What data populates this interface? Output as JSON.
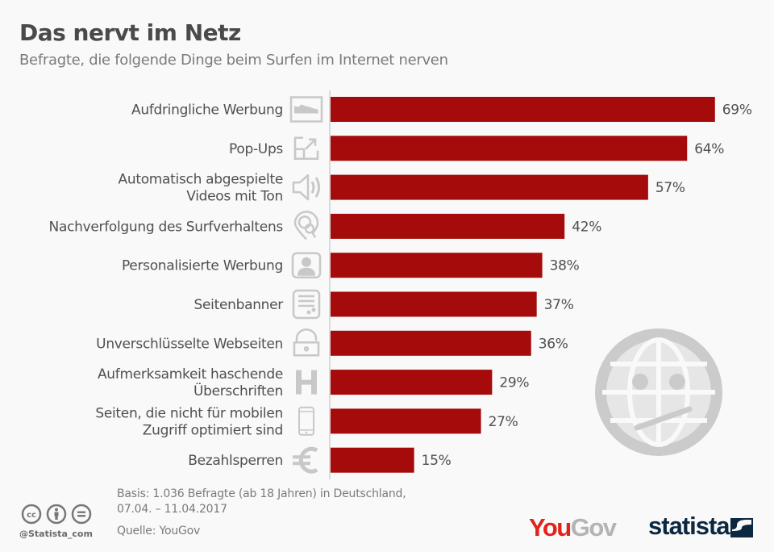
{
  "header": {
    "title": "Das nervt im Netz",
    "subtitle": "Befragte, die folgende Dinge beim Surfen im Internet nerven"
  },
  "colors": {
    "bar": "#a50b0b",
    "icon": "#c8c8c8",
    "text": "#505050",
    "background": "#f9f9f9"
  },
  "chart_data": {
    "type": "bar",
    "orientation": "horizontal",
    "title": "Das nervt im Netz",
    "subtitle": "Befragte, die folgende Dinge beim Surfen im Internet nerven",
    "xlabel": "",
    "ylabel": "",
    "unit": "%",
    "xlim": [
      0,
      70
    ],
    "grid": false,
    "categories": [
      [
        "Aufdringliche Werbung"
      ],
      [
        "Pop-Ups"
      ],
      [
        "Automatisch abgespielte",
        "Videos mit Ton"
      ],
      [
        "Nachverfolgung des Surfverhaltens"
      ],
      [
        "Personalisierte Werbung"
      ],
      [
        "Seitenbanner"
      ],
      [
        "Unverschlüsselte Webseiten"
      ],
      [
        "Aufmerksamkeit haschende",
        "Überschriften"
      ],
      [
        "Seiten, die nicht für mobilen",
        "Zugriff optimiert sind"
      ],
      [
        "Bezahlsperren"
      ]
    ],
    "icons": [
      "ad-chart-icon",
      "popup-expand-icon",
      "speaker-icon",
      "tracking-pin-icon",
      "user-profile-icon",
      "banner-icon",
      "open-lock-icon",
      "headline-h-icon",
      "smartphone-icon",
      "euro-icon"
    ],
    "values": [
      69,
      64,
      57,
      42,
      38,
      37,
      36,
      29,
      27,
      15
    ],
    "value_labels": [
      "69%",
      "64%",
      "57%",
      "42%",
      "38%",
      "37%",
      "36%",
      "29%",
      "27%",
      "15%"
    ]
  },
  "footer": {
    "note_line1": "Basis: 1.036 Befragte (ab 18 Jahren) in Deutschland,",
    "note_line2": "07.04. – 11.04.2017",
    "source": "Quelle: YouGov",
    "handle": "@Statista_com",
    "license_icons": [
      "cc-icon",
      "by-attribution-icon",
      "nd-noderivs-icon"
    ],
    "logo_yougov_part1": "You",
    "logo_yougov_part2": "Gov",
    "logo_statista": "statista"
  }
}
